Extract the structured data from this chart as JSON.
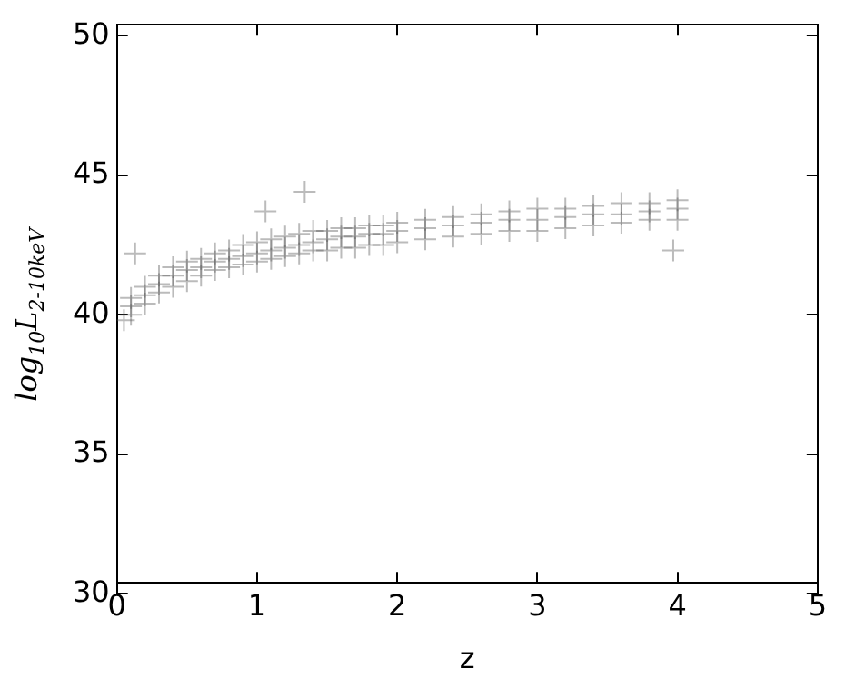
{
  "chart_data": {
    "type": "scatter",
    "xlabel": "z",
    "ylabel": "log$_{10}$L$_{2-10keV}$",
    "xlim": [
      0,
      5
    ],
    "ylim": [
      30,
      50
    ],
    "xticks": [
      0,
      1,
      2,
      3,
      4,
      5
    ],
    "yticks": [
      30,
      35,
      40,
      45,
      50
    ],
    "grid": false,
    "legend": false,
    "marker": "cross",
    "series": [
      {
        "color": "#555555",
        "x": [
          0.1,
          0.1,
          0.1,
          0.2,
          0.2,
          0.2,
          0.3,
          0.3,
          0.3,
          0.4,
          0.4,
          0.4,
          0.5,
          0.5,
          0.5,
          0.6,
          0.6,
          0.6,
          0.7,
          0.7,
          0.7,
          0.8,
          0.8,
          0.8,
          0.9,
          0.9,
          0.9,
          1.0,
          1.0,
          1.0,
          1.1,
          1.1,
          1.1,
          1.2,
          1.2,
          1.2,
          1.3,
          1.3,
          1.3,
          1.4,
          1.4,
          1.4,
          1.5,
          1.5,
          1.5,
          1.6,
          1.6,
          1.6,
          1.7,
          1.7,
          1.7,
          1.8,
          1.8,
          1.8,
          1.9,
          1.9,
          1.9,
          2.0,
          2.0,
          2.0,
          2.2,
          2.2,
          2.2,
          2.4,
          2.4,
          2.4,
          2.6,
          2.6,
          2.6,
          2.8,
          2.8,
          2.8,
          3.0,
          3.0,
          3.0,
          3.2,
          3.2,
          3.2,
          3.4,
          3.4,
          3.4,
          3.6,
          3.6,
          3.6,
          3.8,
          3.8,
          3.8,
          4.0,
          4.0,
          4.0,
          0.13,
          1.06,
          1.34,
          3.97,
          0.05
        ],
        "values": [
          40.6,
          40.3,
          40.0,
          41.0,
          40.7,
          40.4,
          41.4,
          41.1,
          40.8,
          41.7,
          41.4,
          41.0,
          41.9,
          41.6,
          41.2,
          42.0,
          41.7,
          41.4,
          42.2,
          41.9,
          41.6,
          42.3,
          42.0,
          41.7,
          42.5,
          42.1,
          41.8,
          42.6,
          42.2,
          41.9,
          42.7,
          42.3,
          42.0,
          42.8,
          42.4,
          42.1,
          42.9,
          42.5,
          42.2,
          43.0,
          42.6,
          42.3,
          43.0,
          42.7,
          42.3,
          43.1,
          42.8,
          42.4,
          43.1,
          42.8,
          42.4,
          43.2,
          42.9,
          42.5,
          43.2,
          42.9,
          42.5,
          43.3,
          43.0,
          42.6,
          43.4,
          43.1,
          42.7,
          43.5,
          43.2,
          42.8,
          43.6,
          43.3,
          42.9,
          43.7,
          43.4,
          43.0,
          43.8,
          43.4,
          43.0,
          43.8,
          43.5,
          43.1,
          43.9,
          43.6,
          43.2,
          44.0,
          43.6,
          43.3,
          44.0,
          43.7,
          43.4,
          44.1,
          43.8,
          43.4,
          42.2,
          43.7,
          44.4,
          42.3,
          39.8
        ]
      }
    ]
  }
}
